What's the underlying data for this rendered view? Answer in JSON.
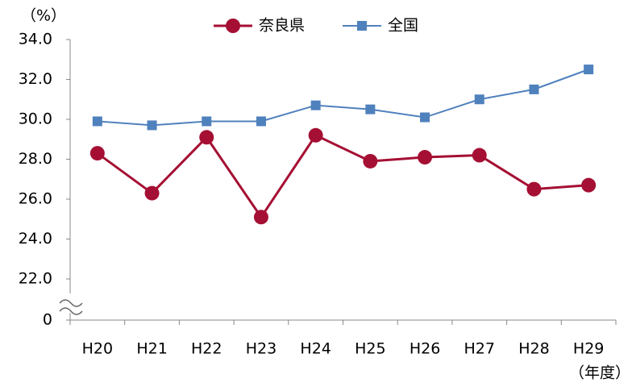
{
  "chart_data": {
    "type": "line",
    "y_unit_label": "（%）",
    "x_unit_label": "（年度）",
    "categories": [
      "H20",
      "H21",
      "H22",
      "H23",
      "H24",
      "H25",
      "H26",
      "H27",
      "H28",
      "H29"
    ],
    "series": [
      {
        "name": "奈良県",
        "color": "#a50f33",
        "marker": "circle",
        "values": [
          28.3,
          26.3,
          29.1,
          25.1,
          29.2,
          27.9,
          28.1,
          28.2,
          26.5,
          26.7
        ]
      },
      {
        "name": "全国",
        "color": "#4f81bd",
        "marker": "square",
        "values": [
          29.9,
          29.7,
          29.9,
          29.9,
          30.7,
          30.5,
          30.1,
          31.0,
          31.5,
          32.5
        ]
      }
    ],
    "ylim": [
      0,
      34
    ],
    "yticks": [
      0,
      {
        "value": 22,
        "label": "22.0"
      },
      {
        "value": 24,
        "label": "24.0"
      },
      {
        "value": 26,
        "label": "26.0"
      },
      {
        "value": 28,
        "label": "28.0"
      },
      {
        "value": 30,
        "label": "30.0"
      },
      {
        "value": 32,
        "label": "32.0"
      },
      {
        "value": 34,
        "label": "34.0"
      }
    ],
    "axis_break": true,
    "grid": false,
    "legend": "top"
  }
}
